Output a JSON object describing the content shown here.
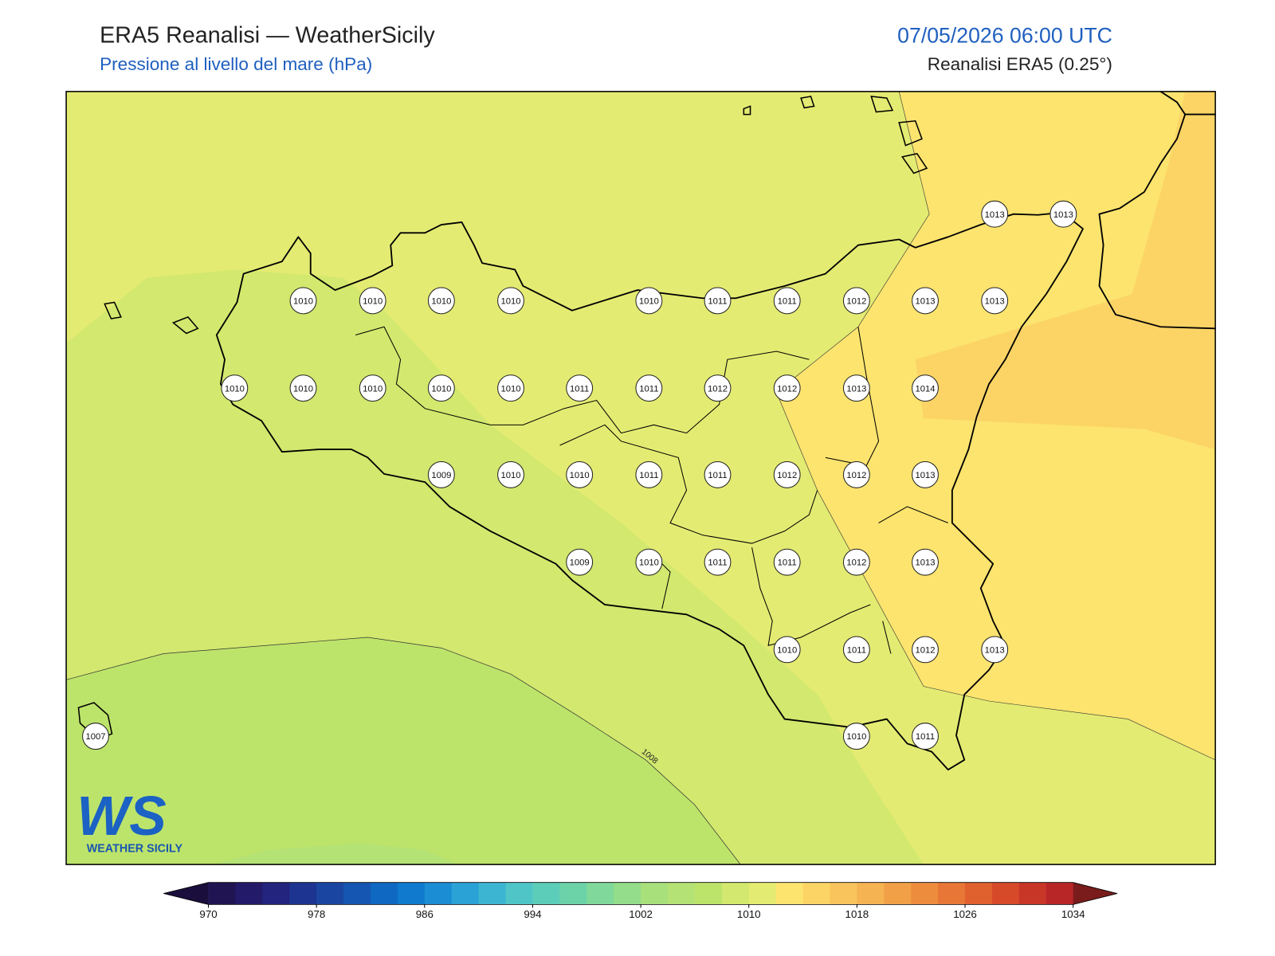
{
  "header": {
    "title": "ERA5 Reanalisi — WeatherSicily",
    "subtitle": "Pressione al livello del mare (hPa)",
    "datetime": "07/05/2026 06:00 UTC",
    "source": "Reanalisi ERA5 (0.25°)"
  },
  "map": {
    "station_values": [
      1013,
      1013,
      1010,
      1010,
      1010,
      1010,
      1010,
      1011,
      1011,
      1012,
      1013,
      1013,
      1010,
      1010,
      1010,
      1010,
      1010,
      1011,
      1011,
      1012,
      1012,
      1013,
      1014,
      1009,
      1010,
      1010,
      1011,
      1011,
      1012,
      1012,
      1013,
      1009,
      1010,
      1011,
      1011,
      1012,
      1013,
      1010,
      1011,
      1012,
      1013,
      1007,
      1010,
      1011
    ],
    "contour_labels": [
      1008
    ]
  },
  "colorbar": {
    "min": 970,
    "max": 1034,
    "ticks": [
      970,
      978,
      986,
      994,
      1002,
      1010,
      1018,
      1026,
      1034
    ],
    "colors": [
      "#201452",
      "#241a6a",
      "#22247e",
      "#1d3590",
      "#1a46a2",
      "#1456b2",
      "#0f68c2",
      "#0f7ace",
      "#1b8dd4",
      "#2ba2d6",
      "#3cb5d2",
      "#4fc5c8",
      "#5ccdb8",
      "#6cd3a8",
      "#80d99a",
      "#94dd8a",
      "#a8e07c",
      "#b4e274",
      "#bde46a",
      "#d2e86e",
      "#e4eb72",
      "#fce46e",
      "#fcd466",
      "#f9c45c",
      "#f6b352",
      "#f2a048",
      "#ee8c3e",
      "#e87636",
      "#e0602e",
      "#d64a2a",
      "#c83628",
      "#b82628"
    ],
    "under_color": "#1a0e3c",
    "over_color": "#7a1c1c"
  },
  "logo": {
    "mark": "WS",
    "name": "WEATHER SICILY"
  }
}
